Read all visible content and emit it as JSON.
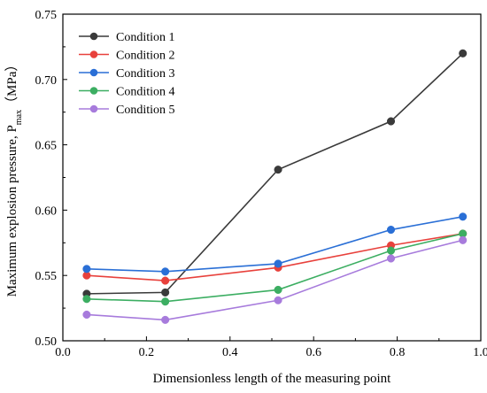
{
  "chart_data": {
    "type": "line",
    "xlabel": "Dimensionless length of the measuring point",
    "ylabel": "Maximum explosion pressure, P",
    "ylabel_sub": "max",
    "ylabel_unit": "（MPa）",
    "xlim": [
      0.0,
      1.0
    ],
    "ylim": [
      0.5,
      0.75
    ],
    "xticks": [
      "0.0",
      "0.2",
      "0.4",
      "0.6",
      "0.8",
      "1.0"
    ],
    "yticks": [
      "0.50",
      "0.55",
      "0.60",
      "0.65",
      "0.70",
      "0.75"
    ],
    "legend_position": "top-left",
    "grid": false,
    "x": [
      0.057,
      0.245,
      0.515,
      0.785,
      0.957
    ],
    "series": [
      {
        "name": "Condition 1",
        "color": "#3a3a3a",
        "values": [
          0.536,
          0.537,
          0.631,
          0.668,
          0.72
        ]
      },
      {
        "name": "Condition 2",
        "color": "#e8413c",
        "values": [
          0.55,
          0.546,
          0.556,
          0.573,
          0.582
        ]
      },
      {
        "name": "Condition 3",
        "color": "#2a6fd6",
        "values": [
          0.555,
          0.553,
          0.559,
          0.585,
          0.595
        ]
      },
      {
        "name": "Condition 4",
        "color": "#3cae62",
        "values": [
          0.532,
          0.53,
          0.539,
          0.569,
          0.582
        ]
      },
      {
        "name": "Condition 5",
        "color": "#a77bdc",
        "values": [
          0.52,
          0.516,
          0.531,
          0.563,
          0.577
        ]
      }
    ]
  }
}
